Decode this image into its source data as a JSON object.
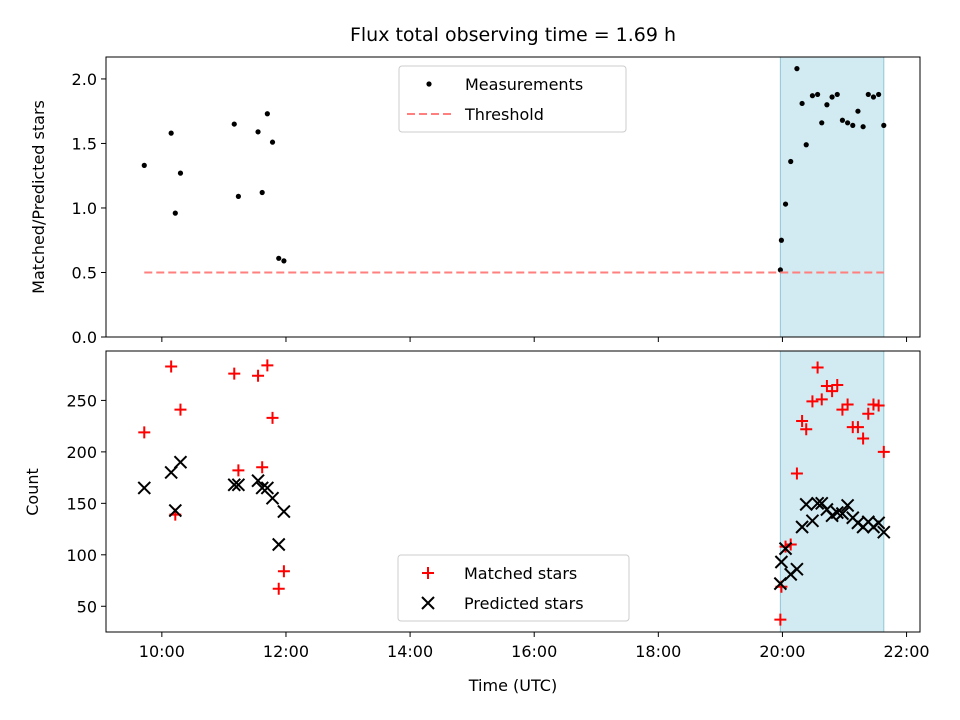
{
  "chart_data": [
    {
      "type": "scatter",
      "title": "Flux total observing time = 1.69 h",
      "xlabel": "",
      "ylabel": "Matched/Predicted stars",
      "xlim": [
        "09:06",
        "22:13"
      ],
      "ylim": [
        0,
        2.17
      ],
      "yticks": [
        0.0,
        0.5,
        1.0,
        1.5,
        2.0
      ],
      "ytick_labels": [
        "0.0",
        "0.5",
        "1.0",
        "1.5",
        "2.0"
      ],
      "shaded_span": {
        "x": [
          "19:58",
          "21:38"
        ],
        "color": "#add8e6"
      },
      "legend": {
        "position": "top-center",
        "entries": [
          "Measurements",
          "Threshold"
        ]
      },
      "series": [
        {
          "name": "Measurements",
          "marker": "dot",
          "color": "#000000",
          "points": [
            [
              "09:43",
              1.33
            ],
            [
              "10:09",
              1.58
            ],
            [
              "10:13",
              0.96
            ],
            [
              "10:18",
              1.27
            ],
            [
              "11:10",
              1.65
            ],
            [
              "11:14",
              1.09
            ],
            [
              "11:33",
              1.59
            ],
            [
              "11:37",
              1.12
            ],
            [
              "11:42",
              1.73
            ],
            [
              "11:47",
              1.51
            ],
            [
              "11:53",
              0.61
            ],
            [
              "11:58",
              0.59
            ],
            [
              "19:58",
              0.52
            ],
            [
              "19:59",
              0.75
            ],
            [
              "20:03",
              1.03
            ],
            [
              "20:08",
              1.36
            ],
            [
              "20:14",
              2.08
            ],
            [
              "20:19",
              1.81
            ],
            [
              "20:23",
              1.49
            ],
            [
              "20:29",
              1.87
            ],
            [
              "20:34",
              1.88
            ],
            [
              "20:38",
              1.66
            ],
            [
              "20:43",
              1.8
            ],
            [
              "20:48",
              1.86
            ],
            [
              "20:53",
              1.88
            ],
            [
              "20:58",
              1.68
            ],
            [
              "21:03",
              1.66
            ],
            [
              "21:08",
              1.64
            ],
            [
              "21:13",
              1.75
            ],
            [
              "21:18",
              1.63
            ],
            [
              "21:23",
              1.88
            ],
            [
              "21:28",
              1.86
            ],
            [
              "21:33",
              1.88
            ],
            [
              "21:38",
              1.64
            ]
          ]
        },
        {
          "name": "Threshold",
          "marker": "dashed-line",
          "color": "#ff7f7f",
          "points": [
            [
              "09:43",
              0.5
            ],
            [
              "21:38",
              0.5
            ]
          ]
        }
      ]
    },
    {
      "type": "scatter",
      "title": "",
      "xlabel": "Time (UTC)",
      "ylabel": "Count",
      "xlim": [
        "09:06",
        "22:13"
      ],
      "ylim": [
        25,
        298
      ],
      "yticks": [
        50,
        100,
        150,
        200,
        250
      ],
      "ytick_labels": [
        "50",
        "100",
        "150",
        "200",
        "250"
      ],
      "xticks": [
        "10:00",
        "12:00",
        "14:00",
        "16:00",
        "18:00",
        "20:00",
        "22:00"
      ],
      "xtick_labels": [
        "10:00",
        "12:00",
        "14:00",
        "16:00",
        "18:00",
        "20:00",
        "22:00"
      ],
      "shaded_span": {
        "x": [
          "19:58",
          "21:38"
        ],
        "color": "#add8e6"
      },
      "legend": {
        "position": "bottom-center",
        "entries": [
          "Matched stars",
          "Predicted stars"
        ]
      },
      "series": [
        {
          "name": "Matched stars",
          "marker": "plus",
          "color": "#ff0000",
          "points": [
            [
              "09:43",
              219
            ],
            [
              "10:09",
              283
            ],
            [
              "10:13",
              139
            ],
            [
              "10:18",
              241
            ],
            [
              "11:10",
              276
            ],
            [
              "11:14",
              182
            ],
            [
              "11:33",
              274
            ],
            [
              "11:37",
              185
            ],
            [
              "11:42",
              284
            ],
            [
              "11:47",
              233
            ],
            [
              "11:53",
              67
            ],
            [
              "11:58",
              84
            ],
            [
              "19:58",
              37
            ],
            [
              "19:59",
              69
            ],
            [
              "20:03",
              108
            ],
            [
              "20:08",
              110
            ],
            [
              "20:14",
              179
            ],
            [
              "20:19",
              230
            ],
            [
              "20:23",
              222
            ],
            [
              "20:29",
              249
            ],
            [
              "20:34",
              282
            ],
            [
              "20:38",
              251
            ],
            [
              "20:43",
              264
            ],
            [
              "20:48",
              259
            ],
            [
              "20:53",
              265
            ],
            [
              "20:58",
              241
            ],
            [
              "21:03",
              246
            ],
            [
              "21:08",
              224
            ],
            [
              "21:13",
              224
            ],
            [
              "21:18",
              213
            ],
            [
              "21:23",
              237
            ],
            [
              "21:28",
              246
            ],
            [
              "21:33",
              245
            ],
            [
              "21:38",
              200
            ]
          ]
        },
        {
          "name": "Predicted stars",
          "marker": "x",
          "color": "#000000",
          "points": [
            [
              "09:43",
              165
            ],
            [
              "10:09",
              180
            ],
            [
              "10:13",
              143
            ],
            [
              "10:18",
              190
            ],
            [
              "11:10",
              168
            ],
            [
              "11:14",
              168
            ],
            [
              "11:33",
              172
            ],
            [
              "11:37",
              165
            ],
            [
              "11:42",
              165
            ],
            [
              "11:47",
              155
            ],
            [
              "11:53",
              110
            ],
            [
              "11:58",
              142
            ],
            [
              "19:58",
              72
            ],
            [
              "19:59",
              93
            ],
            [
              "20:03",
              106
            ],
            [
              "20:08",
              81
            ],
            [
              "20:14",
              86
            ],
            [
              "20:19",
              127
            ],
            [
              "20:23",
              149
            ],
            [
              "20:29",
              133
            ],
            [
              "20:34",
              150
            ],
            [
              "20:38",
              150
            ],
            [
              "20:43",
              144
            ],
            [
              "20:48",
              138
            ],
            [
              "20:53",
              141
            ],
            [
              "20:58",
              140
            ],
            [
              "21:03",
              148
            ],
            [
              "21:08",
              136
            ],
            [
              "21:13",
              131
            ],
            [
              "21:18",
              127
            ],
            [
              "21:23",
              132
            ],
            [
              "21:28",
              127
            ],
            [
              "21:33",
              131
            ],
            [
              "21:38",
              122
            ]
          ]
        }
      ]
    }
  ]
}
